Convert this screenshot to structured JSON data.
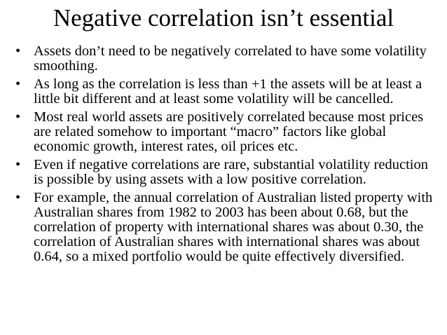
{
  "slide": {
    "title": "Negative correlation isn’t essential",
    "bullet_symbol": "•",
    "bullets": [
      "Assets don’t need to be negatively correlated to have some volatility smoothing.",
      "As long as the correlation is less than +1 the assets will be at least a little bit different and at least some volatility will be cancelled.",
      "Most real world assets are positively correlated because most prices are related somehow to important “macro” factors like global economic growth, interest rates, oil prices etc.",
      "Even if negative correlations are rare, substantial volatility reduction is possible by using assets with a low positive correlation.",
      "For example, the annual correlation of Australian listed property with Australian shares from 1982 to 2003 has been about 0.68, but the correlation of property with international shares was about 0.30, the correlation of Australian shares with international shares was about 0.64, so a mixed portfolio would be quite effectively diversified."
    ]
  }
}
